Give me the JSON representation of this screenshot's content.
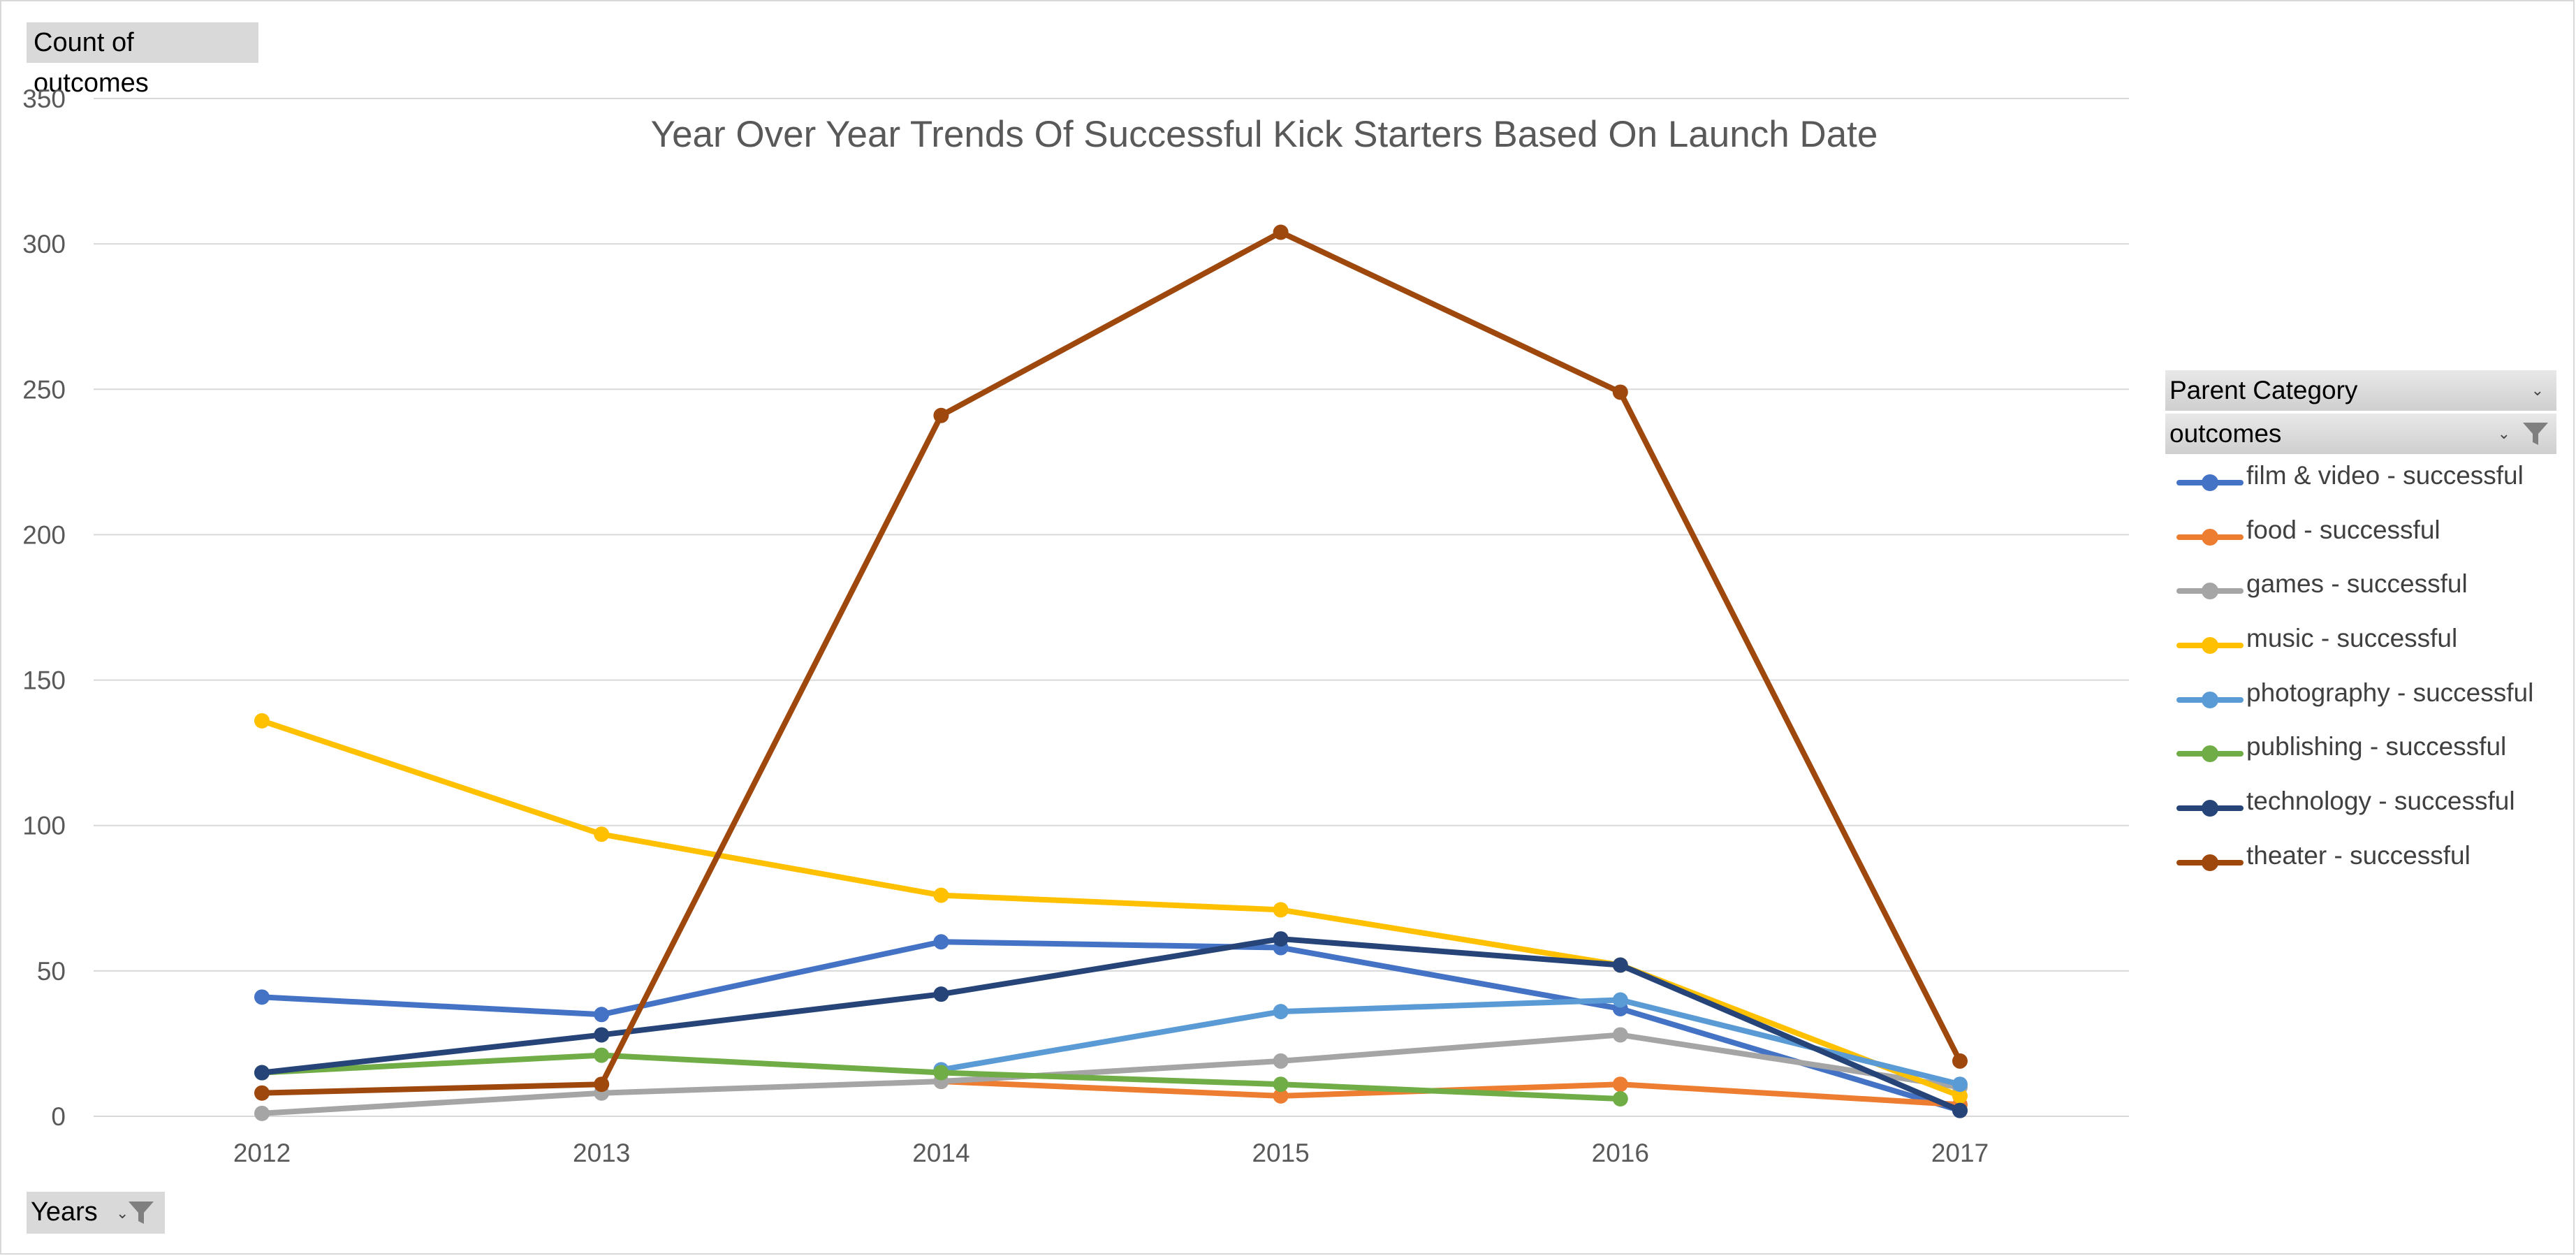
{
  "value_field_button": "Count of outcomes",
  "axis_field_button": "Years",
  "legend": {
    "header_row": "Parent Category",
    "filter_row": "outcomes"
  },
  "icons": {
    "dropdown": "dropdown-arrow-icon",
    "filter": "filter-funnel-icon"
  },
  "chart_data": {
    "type": "line",
    "title": "Year Over Year Trends Of Successful Kick Starters Based On Launch Date",
    "xlabel": "",
    "ylabel": "",
    "categories": [
      "2012",
      "2013",
      "2014",
      "2015",
      "2016",
      "2017"
    ],
    "ylim": [
      0,
      350
    ],
    "yticks": [
      0,
      50,
      100,
      150,
      200,
      250,
      300,
      350
    ],
    "grid": true,
    "legend_position": "right",
    "series": [
      {
        "name": "film & video - successful",
        "color": "#4472C4",
        "values": [
          41,
          35,
          60,
          58,
          37,
          2
        ]
      },
      {
        "name": "food - successful",
        "color": "#ED7D31",
        "values": [
          null,
          null,
          12,
          7,
          11,
          4
        ]
      },
      {
        "name": "games - successful",
        "color": "#A5A5A5",
        "values": [
          1,
          8,
          12,
          19,
          28,
          10
        ]
      },
      {
        "name": "music - successful",
        "color": "#FFC000",
        "values": [
          136,
          97,
          76,
          71,
          52,
          7
        ]
      },
      {
        "name": "photography - successful",
        "color": "#5B9BD5",
        "values": [
          null,
          null,
          16,
          36,
          40,
          11
        ]
      },
      {
        "name": "publishing - successful",
        "color": "#70AD47",
        "values": [
          15,
          21,
          15,
          11,
          6,
          null
        ]
      },
      {
        "name": "technology - successful",
        "color": "#264478",
        "values": [
          15,
          28,
          42,
          61,
          52,
          2
        ]
      },
      {
        "name": "theater - successful",
        "color": "#9E480E",
        "values": [
          8,
          11,
          241,
          304,
          249,
          19
        ]
      }
    ]
  }
}
